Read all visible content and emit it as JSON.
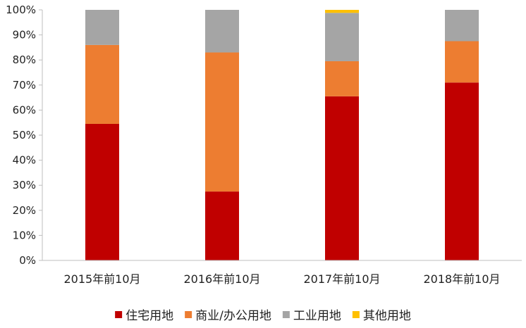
{
  "chart_data": {
    "type": "bar",
    "stacked": true,
    "categories": [
      "2015年前10月",
      "2016年前10月",
      "2017年前10月",
      "2018年前10月"
    ],
    "series": [
      {
        "name": "住宅用地",
        "color": "#c00000",
        "values": [
          54.5,
          27.5,
          65.5,
          71.0
        ]
      },
      {
        "name": "商业/办公用地",
        "color": "#ed7d31",
        "values": [
          31.5,
          55.5,
          14.0,
          16.5
        ]
      },
      {
        "name": "工业用地",
        "color": "#a5a5a5",
        "values": [
          14.0,
          17.0,
          19.3,
          12.5
        ]
      },
      {
        "name": "其他用地",
        "color": "#ffc000",
        "values": [
          0,
          0,
          1.2,
          0
        ]
      }
    ],
    "y_ticks": [
      "0%",
      "10%",
      "20%",
      "30%",
      "40%",
      "50%",
      "60%",
      "70%",
      "80%",
      "90%",
      "100%"
    ],
    "ylim": [
      0,
      100
    ],
    "grid": false,
    "legend_position": "bottom",
    "title": "",
    "xlabel": "",
    "ylabel": ""
  }
}
